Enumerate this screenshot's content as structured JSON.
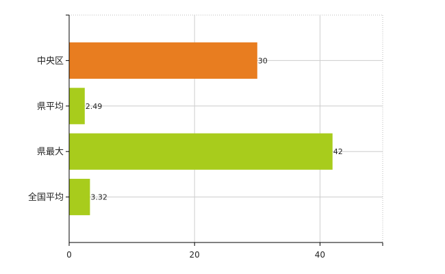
{
  "chart_data": {
    "type": "bar",
    "orientation": "horizontal",
    "categories": [
      "中央区",
      "県平均",
      "県最大",
      "全国平均"
    ],
    "values": [
      30,
      2.49,
      42,
      3.32
    ],
    "value_labels": [
      "30",
      "2.49",
      "42",
      "3.32"
    ],
    "bar_colors": [
      "#e87d20",
      "#a8cc1c",
      "#a8cc1c",
      "#a8cc1c"
    ],
    "xlim": [
      0,
      50
    ],
    "x_ticks": [
      0,
      20,
      40
    ],
    "x_tick_labels": [
      "0",
      "20",
      "40"
    ],
    "grid": true,
    "title": "",
    "xlabel": "",
    "ylabel": ""
  }
}
